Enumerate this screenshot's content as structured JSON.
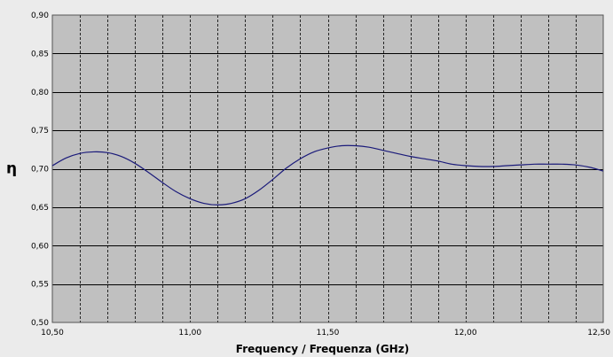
{
  "chart_data": {
    "type": "line",
    "title": "",
    "xlabel": "Frequency / Frequenza (GHz)",
    "ylabel": "η",
    "xlim": [
      10.5,
      12.5
    ],
    "ylim": [
      0.5,
      0.9
    ],
    "x_ticks": [
      10.5,
      11.0,
      11.5,
      12.0,
      12.5
    ],
    "x_tick_labels": [
      "10,50",
      "11,00",
      "11,50",
      "12,00",
      "12,50"
    ],
    "y_ticks": [
      0.5,
      0.55,
      0.6,
      0.65,
      0.7,
      0.75,
      0.8,
      0.85,
      0.9
    ],
    "y_tick_labels": [
      "0,50",
      "0,55",
      "0,60",
      "0,65",
      "0,70",
      "0,75",
      "0,80",
      "0,85",
      "0,90"
    ],
    "x_minor_step": 0.1,
    "grid": true,
    "legend": "none",
    "colors": {
      "plot_background": "#c0c0c0",
      "page_background": "#ebebeb",
      "series_line": "#1a1a7a",
      "grid": "#000000"
    },
    "series": [
      {
        "x": [
          10.5,
          10.55,
          10.6,
          10.65,
          10.7,
          10.75,
          10.8,
          10.85,
          10.9,
          10.95,
          11.0,
          11.05,
          11.1,
          11.15,
          11.2,
          11.25,
          11.3,
          11.35,
          11.4,
          11.45,
          11.5,
          11.55,
          11.6,
          11.65,
          11.7,
          11.75,
          11.8,
          11.85,
          11.9,
          11.95,
          12.0,
          12.05,
          12.1,
          12.15,
          12.2,
          12.25,
          12.3,
          12.35,
          12.4,
          12.45,
          12.5
        ],
        "y": [
          0.704,
          0.714,
          0.72,
          0.722,
          0.721,
          0.716,
          0.707,
          0.695,
          0.682,
          0.67,
          0.661,
          0.655,
          0.653,
          0.655,
          0.661,
          0.672,
          0.686,
          0.701,
          0.713,
          0.722,
          0.727,
          0.73,
          0.73,
          0.728,
          0.724,
          0.72,
          0.716,
          0.713,
          0.71,
          0.706,
          0.704,
          0.703,
          0.703,
          0.704,
          0.705,
          0.706,
          0.706,
          0.706,
          0.705,
          0.702,
          0.697
        ]
      }
    ]
  }
}
